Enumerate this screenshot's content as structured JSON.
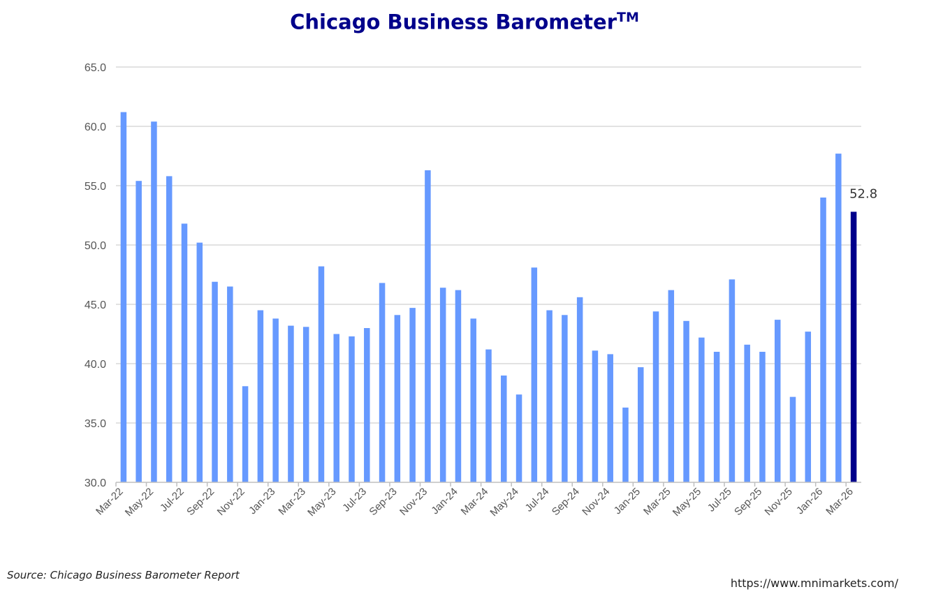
{
  "chart_data": {
    "type": "bar",
    "title": "Chicago Business Barometer",
    "title_superscript": "TM",
    "xlabel": "",
    "ylabel": "",
    "ylim": [
      30.0,
      65.0
    ],
    "yticks": [
      "30.0",
      "35.0",
      "40.0",
      "45.0",
      "50.0",
      "55.0",
      "60.0",
      "65.0"
    ],
    "grid": "horizontal",
    "legend": "none",
    "colors": {
      "bar": "#6699ff",
      "highlight": "#00008b",
      "grid": "#d9d9d9",
      "axis": "#bfbfbf"
    },
    "categories": [
      "Mar-22",
      "Apr-22",
      "May-22",
      "Jun-22",
      "Jul-22",
      "Aug-22",
      "Sep-22",
      "Oct-22",
      "Nov-22",
      "Dec-22",
      "Jan-23",
      "Feb-23",
      "Mar-23",
      "Apr-23",
      "May-23",
      "Jun-23",
      "Jul-23",
      "Aug-23",
      "Sep-23",
      "Oct-23",
      "Nov-23",
      "Dec-23",
      "Jan-24",
      "Feb-24",
      "Mar-24",
      "Apr-24",
      "May-24",
      "Jun-24",
      "Jul-24",
      "Aug-24",
      "Sep-24",
      "Oct-24",
      "Nov-24",
      "Dec-24",
      "Jan-25",
      "Feb-25",
      "Mar-25",
      "Apr-25",
      "May-25",
      "Jun-25",
      "Jul-25",
      "Aug-25",
      "Sep-25",
      "Oct-25",
      "Nov-25",
      "Dec-25",
      "Jan-26",
      "Feb-26",
      "Mar-26"
    ],
    "x_tick_labels": [
      "Mar-22",
      "May-22",
      "Jul-22",
      "Sep-22",
      "Nov-22",
      "Jan-23",
      "Mar-23",
      "May-23",
      "Jul-23",
      "Sep-23",
      "Nov-23",
      "Jan-24",
      "Mar-24",
      "May-24",
      "Jul-24",
      "Sep-24",
      "Nov-24",
      "Jan-25",
      "Mar-25",
      "May-25",
      "Jul-25",
      "Sep-25",
      "Nov-25",
      "Jan-26",
      "Mar-26"
    ],
    "values": [
      61.2,
      55.4,
      60.4,
      55.8,
      51.8,
      50.2,
      46.9,
      46.5,
      38.1,
      44.5,
      43.8,
      43.2,
      43.1,
      48.2,
      42.5,
      42.3,
      43.0,
      46.8,
      44.1,
      44.7,
      56.3,
      46.4,
      46.2,
      43.8,
      41.2,
      39.0,
      37.4,
      48.1,
      44.5,
      44.1,
      45.6,
      41.1,
      40.8,
      36.3,
      39.7,
      44.4,
      46.2,
      43.6,
      42.2,
      41.0,
      47.1,
      41.6,
      41.0,
      43.7,
      37.2,
      42.7,
      54.0,
      57.7,
      52.8
    ],
    "highlight_index": 48,
    "data_labels": [
      {
        "index": 48,
        "text": "52.8"
      }
    ]
  },
  "footer": {
    "source": "Source: Chicago Business Barometer Report",
    "url": "https://www.mnimarkets.com/"
  }
}
